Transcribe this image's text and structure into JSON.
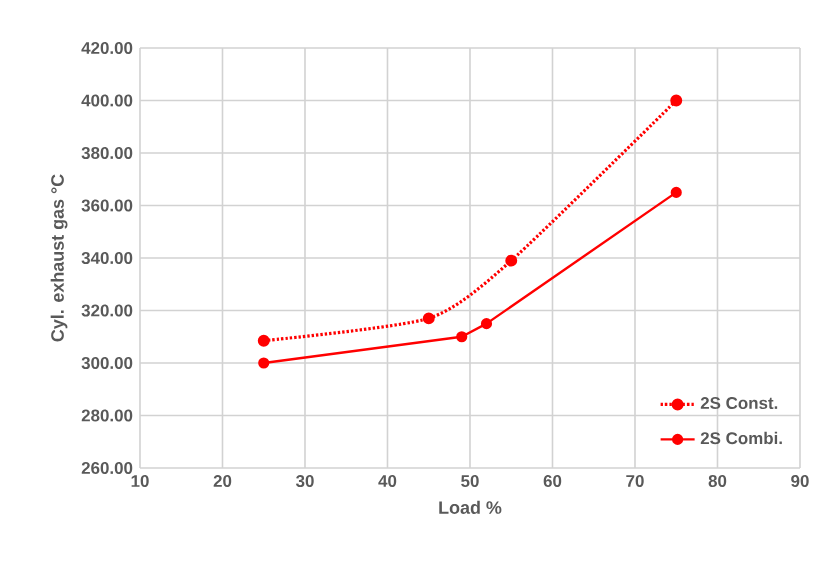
{
  "chart_data": {
    "type": "line",
    "xlabel": "Load %",
    "ylabel": "Cyl. exhaust gas °C",
    "xlim": [
      10,
      90
    ],
    "xticks": [
      10,
      20,
      30,
      40,
      50,
      60,
      70,
      80,
      90
    ],
    "ylim": [
      260,
      420
    ],
    "yticks": [
      {
        "value": 260,
        "label": "260.00"
      },
      {
        "value": 280,
        "label": "280.00"
      },
      {
        "value": 300,
        "label": "300.00"
      },
      {
        "value": 320,
        "label": "320.00"
      },
      {
        "value": 340,
        "label": "340.00"
      },
      {
        "value": 360,
        "label": "360.00"
      },
      {
        "value": 380,
        "label": "380.00"
      },
      {
        "value": 400,
        "label": "400.00"
      },
      {
        "value": 420,
        "label": "420.00"
      }
    ],
    "grid": true,
    "legend": "bottom right",
    "marker": "circle",
    "series": [
      {
        "name": "2S Const.",
        "color": "#ff0000",
        "line_style": "dotted",
        "x": [
          25,
          45,
          55,
          75
        ],
        "values": [
          308.5,
          317,
          339,
          400
        ]
      },
      {
        "name": "2S Combi.",
        "color": "#ff0000",
        "line_style": "solid",
        "x": [
          25,
          49,
          52,
          75
        ],
        "values": [
          300,
          310,
          315,
          365
        ]
      }
    ]
  }
}
